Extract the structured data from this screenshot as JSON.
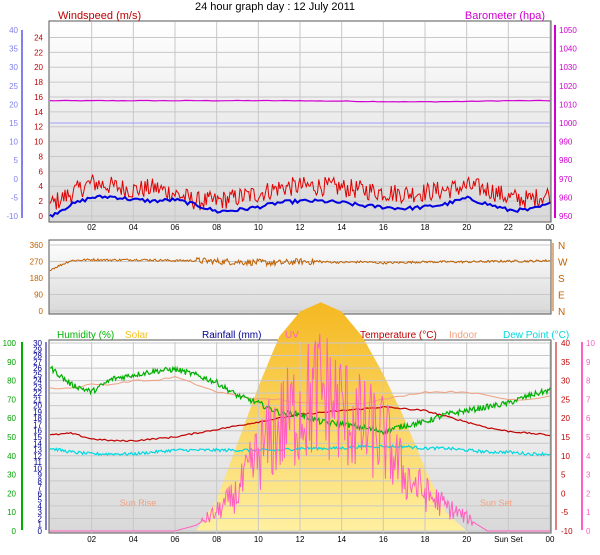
{
  "title": "24 hour graph day : 12 July 2011",
  "colors": {
    "wind": "#e00000",
    "gust": "#e00000",
    "avgwind": "#0000e0",
    "baro": "#d000d0",
    "dir": "#c06000",
    "humidity": "#00b000",
    "solar": "#f8c020",
    "rain": "#000090",
    "uv": "#ff60c0",
    "temp": "#c00000",
    "indoor": "#f0a080",
    "dew": "#00d8e0",
    "axis_blue": "#8080f0"
  },
  "chart_data": [
    {
      "type": "line",
      "x_hours": [
        0,
        1,
        2,
        3,
        4,
        5,
        6,
        7,
        8,
        9,
        10,
        11,
        12,
        13,
        14,
        15,
        16,
        17,
        18,
        19,
        20,
        21,
        22,
        23,
        24
      ],
      "x_tick_labels": [
        "02",
        "04",
        "06",
        "08",
        "10",
        "12",
        "14",
        "16",
        "18",
        "20",
        "22",
        "00"
      ],
      "left_axis": {
        "label": "Windspeed (m/s)",
        "ylim": [
          0,
          25
        ],
        "ticks": [
          0,
          2,
          4,
          6,
          8,
          10,
          12,
          14,
          16,
          18,
          20,
          22,
          24
        ]
      },
      "outer_left_axis": {
        "ylim": [
          -10,
          40
        ],
        "ticks": [
          "-10",
          "-5",
          "0",
          "5",
          "10",
          "15",
          "20",
          "25",
          "30",
          "35",
          "40"
        ]
      },
      "right_axis": {
        "label": "Barometer (hpa)",
        "ylim": [
          950,
          1050
        ],
        "ticks": [
          950,
          960,
          970,
          980,
          990,
          1000,
          1010,
          1020,
          1030,
          1040,
          1050
        ]
      },
      "series": [
        {
          "name": "Windspeed (m/s)",
          "values": [
            1.5,
            3.0,
            4.5,
            4.0,
            3.5,
            3.8,
            3.0,
            2.0,
            2.0,
            2.5,
            3.0,
            3.8,
            4.0,
            4.0,
            3.8,
            3.5,
            3.2,
            3.0,
            3.2,
            3.5,
            4.0,
            3.6,
            2.5,
            2.2,
            3.0
          ]
        },
        {
          "values": [
            0.0,
            1.5,
            2.5,
            2.6,
            2.2,
            2.0,
            2.2,
            1.5,
            0.6,
            0.8,
            1.2,
            1.8,
            2.0,
            2.0,
            1.8,
            1.4,
            1.2,
            1.0,
            1.2,
            1.6,
            2.4,
            1.6,
            0.8,
            0.8,
            1.6
          ]
        },
        {
          "name": "Barometer (hpa)",
          "values": [
            1012,
            1012,
            1012,
            1012,
            1012,
            1012,
            1012,
            1012,
            1012,
            1012,
            1012,
            1012,
            1012,
            1011.8,
            1011.8,
            1011.6,
            1011.5,
            1011.4,
            1011.4,
            1011.5,
            1011.6,
            1011.8,
            1012,
            1012,
            1012
          ]
        },
        {
          "values": [
            1000,
            1000,
            1000,
            1000,
            1000,
            1000,
            1000,
            1000,
            1000,
            1000,
            1000,
            1000,
            1000,
            1000,
            1000,
            1000,
            1000,
            1000,
            1000,
            1000,
            1000,
            1000,
            1000,
            1000,
            1000
          ]
        }
      ]
    },
    {
      "type": "line",
      "x_hours": [
        0,
        1,
        2,
        3,
        4,
        5,
        6,
        7,
        8,
        9,
        10,
        11,
        12,
        13,
        14,
        15,
        16,
        17,
        18,
        19,
        20,
        21,
        22,
        23,
        24
      ],
      "left_axis": {
        "ylim": [
          0,
          360
        ],
        "ticks": [
          0,
          90,
          180,
          270,
          360
        ]
      },
      "right_axis": {
        "ticks": [
          "N",
          "E",
          "S",
          "W",
          "N"
        ]
      },
      "series": [
        {
          "values": [
            225,
            275,
            280,
            278,
            280,
            278,
            275,
            275,
            270,
            268,
            265,
            262,
            270,
            268,
            265,
            268,
            262,
            265,
            268,
            268,
            268,
            270,
            272,
            272,
            275
          ]
        }
      ]
    },
    {
      "type": "line",
      "x_hours": [
        0,
        1,
        2,
        3,
        4,
        5,
        6,
        7,
        8,
        9,
        10,
        11,
        12,
        13,
        14,
        15,
        16,
        17,
        18,
        19,
        20,
        21,
        22,
        23,
        24
      ],
      "x_tick_labels": [
        "02",
        "04",
        "06",
        "08",
        "10",
        "12",
        "14",
        "16",
        "18",
        "20",
        "Sun Set",
        "00"
      ],
      "legend": [
        "Humidity (%)",
        "Solar",
        "Rainfall (mm)",
        "UV",
        "Temperature (°C)",
        "Indoor",
        "Dew Point (°C)"
      ],
      "annotations": [
        "Sun Rise",
        "Sun Set"
      ],
      "humidity_axis": {
        "ylim": [
          0,
          100
        ],
        "ticks": [
          0,
          10,
          20,
          30,
          40,
          50,
          60,
          70,
          80,
          90,
          100
        ]
      },
      "rain_axis": {
        "ylim": [
          0,
          30
        ],
        "ticks": [
          0,
          1,
          2,
          3,
          4,
          5,
          6,
          7,
          8,
          9,
          10,
          11,
          12,
          13,
          14,
          15,
          16,
          17,
          18,
          19,
          20,
          21,
          22,
          23,
          24,
          25,
          26,
          27,
          28,
          29,
          30
        ]
      },
      "temp_axis": {
        "ylim": [
          -10,
          40
        ],
        "ticks": [
          -10,
          -5,
          0,
          5,
          10,
          15,
          20,
          25,
          30,
          35,
          40
        ]
      },
      "uv_axis": {
        "ylim": [
          0,
          10
        ],
        "ticks": [
          0,
          1,
          2,
          3,
          4,
          5,
          6,
          7,
          8,
          9,
          10
        ]
      },
      "series": [
        {
          "name": "Humidity (%)",
          "values": [
            87,
            78,
            74,
            81,
            83,
            85,
            86,
            83,
            79,
            72,
            68,
            63,
            62,
            58,
            57,
            55,
            53,
            56,
            58,
            62,
            64,
            66,
            68,
            72,
            75
          ]
        },
        {
          "name": "Temperature (°C)",
          "values": [
            15.5,
            16,
            14.5,
            14,
            14,
            14.5,
            15,
            16,
            17,
            18,
            19,
            20,
            21,
            21.5,
            22,
            22.5,
            23,
            22.5,
            22,
            20.5,
            19,
            17.5,
            16.5,
            16,
            15.5
          ]
        },
        {
          "name": "Dew Point (°C)",
          "values": [
            12,
            11,
            10.5,
            10.5,
            10.5,
            11,
            11.5,
            11.5,
            11.5,
            11.5,
            11.5,
            11.5,
            12,
            12,
            12,
            12.5,
            12.5,
            12.5,
            12,
            12,
            11.5,
            11,
            11,
            10.5,
            10.5
          ]
        },
        {
          "name": "Indoor",
          "values": [
            28,
            28,
            29,
            29,
            30,
            30,
            31,
            29,
            27,
            26,
            25,
            25,
            24,
            24,
            24,
            24,
            25,
            26,
            27,
            27,
            27,
            26,
            25,
            25,
            26
          ]
        },
        {
          "name": "UV",
          "values": [
            0,
            0,
            0,
            0,
            0,
            0,
            0,
            0.3,
            1,
            2,
            4,
            5.5,
            6.5,
            7.5,
            6.5,
            5.5,
            5,
            3,
            2,
            1.3,
            0.7,
            0,
            0,
            0,
            0
          ]
        },
        {
          "name": "Solar",
          "values": [
            0,
            0,
            0,
            0,
            0,
            0,
            0,
            0,
            5,
            14,
            23,
            31,
            35,
            36.5,
            35,
            31,
            25,
            18,
            10,
            3,
            0,
            0,
            0,
            0,
            0
          ]
        }
      ]
    }
  ]
}
